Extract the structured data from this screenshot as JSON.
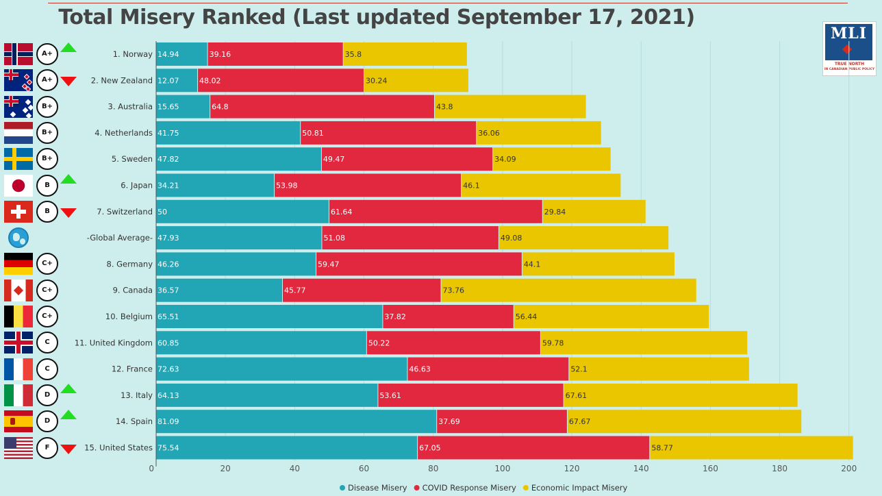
{
  "page": {
    "title": "Total Misery Ranked (Last updated September 17, 2021)",
    "logo": {
      "text": "MLI",
      "tagline_1": "TRUE NORTH",
      "tagline_2": "IN CANADIAN PUBLIC POLICY"
    }
  },
  "colors": {
    "disease": "#22a5b5",
    "covid": "#e1283e",
    "economic": "#e9c600",
    "up_arrow": "#22dd22",
    "down_arrow": "#ee1111"
  },
  "chart_data": {
    "type": "bar",
    "orientation": "horizontal",
    "stacked": true,
    "title": "Total Misery Ranked (Last updated September 17, 2021)",
    "categories": [
      "1. Norway",
      "2. New Zealand",
      "3. Australia",
      "4. Netherlands",
      "5. Sweden",
      "6. Japan",
      "7. Switzerland",
      "-Global Average-",
      "8. Germany",
      "9. Canada",
      "10. Belgium",
      "11. United Kingdom",
      "12. France",
      "13. Italy",
      "14. Spain",
      "15. United States"
    ],
    "series": [
      {
        "name": "Disease Misery",
        "color": "#22a5b5",
        "values": [
          14.94,
          12.07,
          15.65,
          41.75,
          47.82,
          34.21,
          50,
          47.93,
          46.26,
          36.57,
          65.51,
          60.85,
          72.63,
          64.13,
          81.09,
          75.54
        ]
      },
      {
        "name": "COVID Response Misery",
        "color": "#e1283e",
        "values": [
          39.16,
          48.02,
          64.8,
          50.81,
          49.47,
          53.98,
          61.64,
          51.08,
          59.47,
          45.77,
          37.82,
          50.22,
          46.63,
          53.61,
          37.69,
          67.05
        ]
      },
      {
        "name": "Economic Impact Misery",
        "color": "#e9c600",
        "values": [
          35.8,
          30.24,
          43.8,
          36.06,
          34.09,
          46.1,
          29.84,
          49.08,
          44.1,
          73.76,
          56.44,
          59.78,
          52.1,
          67.61,
          67.67,
          58.77
        ]
      }
    ],
    "xlim": [
      0,
      204
    ],
    "xticks": [
      0,
      20,
      40,
      60,
      80,
      100,
      120,
      140,
      160,
      180,
      200
    ],
    "grid": true,
    "legend_position": "bottom"
  },
  "rows": [
    {
      "flag": "norway",
      "grade": "A+",
      "arrow": "up"
    },
    {
      "flag": "new-zealand",
      "grade": "A+",
      "arrow": "down"
    },
    {
      "flag": "australia",
      "grade": "B+",
      "arrow": ""
    },
    {
      "flag": "netherlands",
      "grade": "B+",
      "arrow": ""
    },
    {
      "flag": "sweden",
      "grade": "B+",
      "arrow": ""
    },
    {
      "flag": "japan",
      "grade": "B",
      "arrow": "up"
    },
    {
      "flag": "switzerland",
      "grade": "B",
      "arrow": "down"
    },
    {
      "flag": "globe",
      "grade": "",
      "arrow": ""
    },
    {
      "flag": "germany",
      "grade": "C+",
      "arrow": ""
    },
    {
      "flag": "canada",
      "grade": "C+",
      "arrow": ""
    },
    {
      "flag": "belgium",
      "grade": "C+",
      "arrow": ""
    },
    {
      "flag": "united-kingdom",
      "grade": "C",
      "arrow": ""
    },
    {
      "flag": "france",
      "grade": "C",
      "arrow": ""
    },
    {
      "flag": "italy",
      "grade": "D",
      "arrow": "up"
    },
    {
      "flag": "spain",
      "grade": "D",
      "arrow": "up"
    },
    {
      "flag": "united-states",
      "grade": "F",
      "arrow": "down"
    }
  ]
}
